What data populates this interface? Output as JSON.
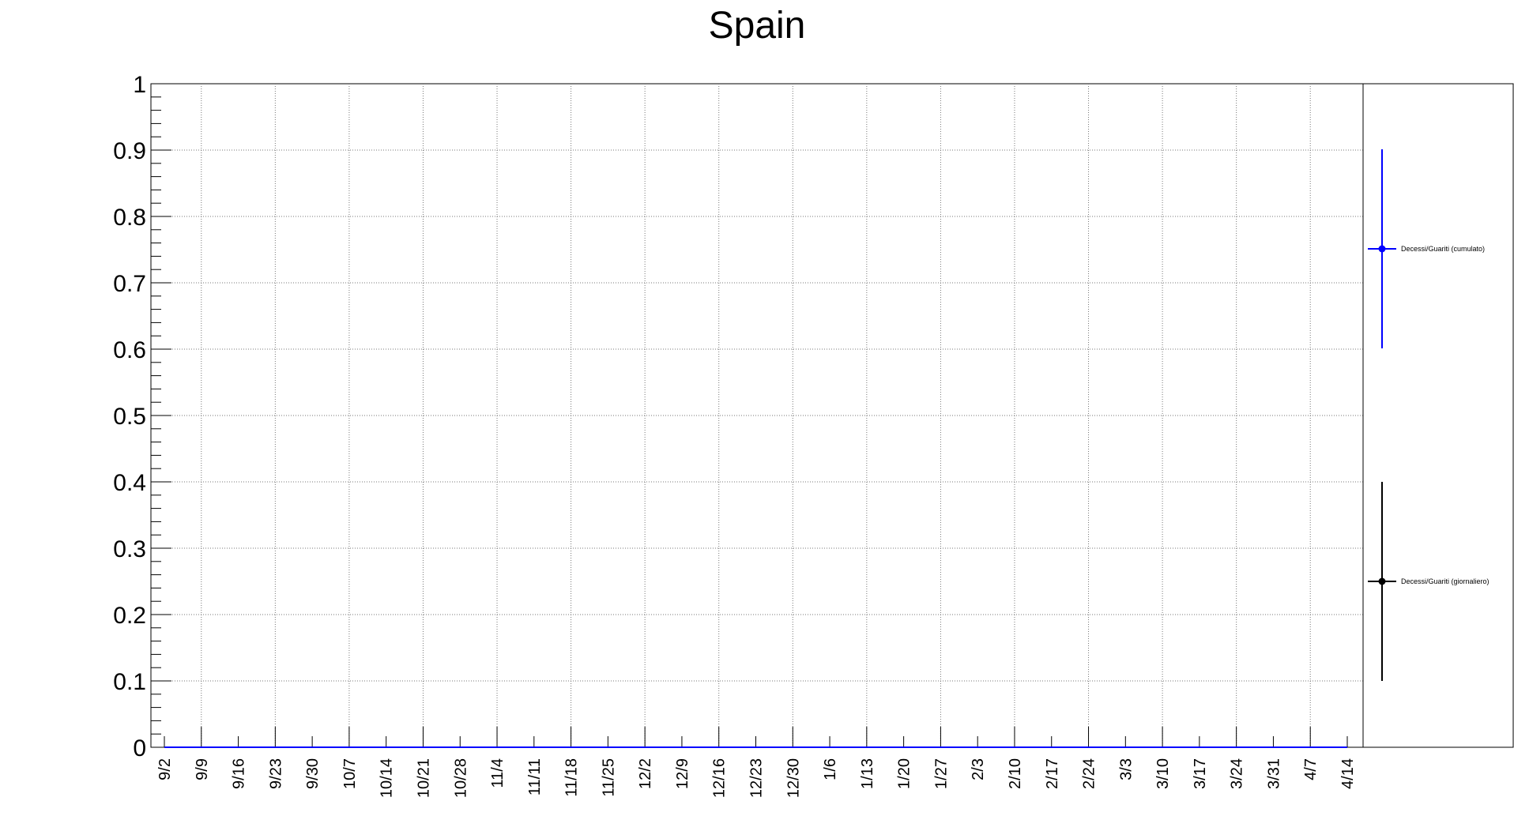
{
  "chart_data": {
    "type": "line",
    "title": "Spain",
    "xlabel": "",
    "ylabel": "",
    "ylim": [
      0,
      1
    ],
    "yticks": [
      "0",
      "0.1",
      "0.2",
      "0.3",
      "0.4",
      "0.5",
      "0.6",
      "0.7",
      "0.8",
      "0.9",
      "1"
    ],
    "categories": [
      "9/2",
      "9/9",
      "9/16",
      "9/23",
      "9/30",
      "10/7",
      "10/14",
      "10/21",
      "10/28",
      "11/4",
      "11/11",
      "11/18",
      "11/25",
      "12/2",
      "12/9",
      "12/16",
      "12/23",
      "12/30",
      "1/6",
      "1/13",
      "1/20",
      "1/27",
      "2/3",
      "2/10",
      "2/17",
      "2/24",
      "3/3",
      "3/10",
      "3/17",
      "3/24",
      "3/31",
      "4/7",
      "4/14"
    ],
    "grid": true,
    "legend_position": "right",
    "series": [
      {
        "name": "Decessi/Guariti (cumulato)",
        "color": "#0000ff",
        "values": [
          0,
          0,
          0,
          0,
          0,
          0,
          0,
          0,
          0,
          0,
          0,
          0,
          0,
          0,
          0,
          0,
          0,
          0,
          0,
          0,
          0,
          0,
          0,
          0,
          0,
          0,
          0,
          0,
          0,
          0,
          0,
          0,
          0
        ]
      },
      {
        "name": "Decessi/Guariti (giornaliero)",
        "color": "#000000",
        "values": [
          0,
          0,
          0,
          0,
          0,
          0,
          0,
          0,
          0,
          0,
          0,
          0,
          0,
          0,
          0,
          0,
          0,
          0,
          0,
          0,
          0,
          0,
          0,
          0,
          0,
          0,
          0,
          0,
          0,
          0,
          0,
          0,
          0
        ]
      }
    ]
  }
}
